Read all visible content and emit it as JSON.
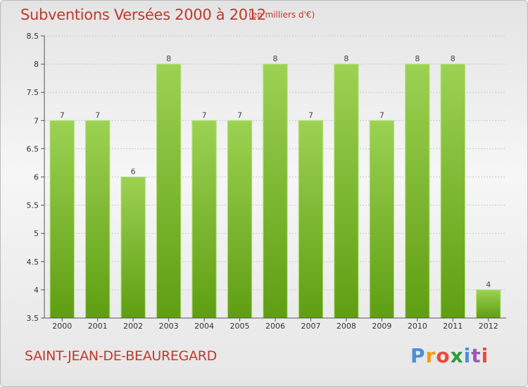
{
  "title": "Subventions Versées 2000 à 2012",
  "subtitle": "(en milliers d'€)",
  "commune": "SAINT-JEAN-DE-BEAUREGARD",
  "logo": {
    "text": "Proxiti",
    "letter_colors": [
      "#4a90d9",
      "#f39c12",
      "#e74c3c",
      "#2c9c3c",
      "#4a90d9",
      "#9b59b6",
      "#e74c3c"
    ]
  },
  "colors": {
    "bar_light": "#9cd253",
    "bar_dark": "#5f9e12",
    "text_accent": "#c0392b"
  },
  "chart_data": {
    "type": "bar",
    "categories": [
      "2000",
      "2001",
      "2002",
      "2003",
      "2004",
      "2005",
      "2006",
      "2007",
      "2008",
      "2009",
      "2010",
      "2011",
      "2012"
    ],
    "values": [
      7,
      7,
      6,
      8,
      7,
      7,
      8,
      7,
      8,
      7,
      8,
      8,
      4
    ],
    "data_labels": [
      "7",
      "7",
      "6",
      "8",
      "7",
      "7",
      "8",
      "7",
      "8",
      "7",
      "8",
      "8",
      "4"
    ],
    "ylim": [
      3.5,
      8.5
    ],
    "yticks": [
      "3.5",
      "4",
      "4.5",
      "5",
      "5.5",
      "6",
      "6.5",
      "7",
      "7.5",
      "8",
      "8.5"
    ],
    "grid": true,
    "title": "Subventions Versées 2000 à 2012",
    "xlabel": "",
    "ylabel": ""
  }
}
